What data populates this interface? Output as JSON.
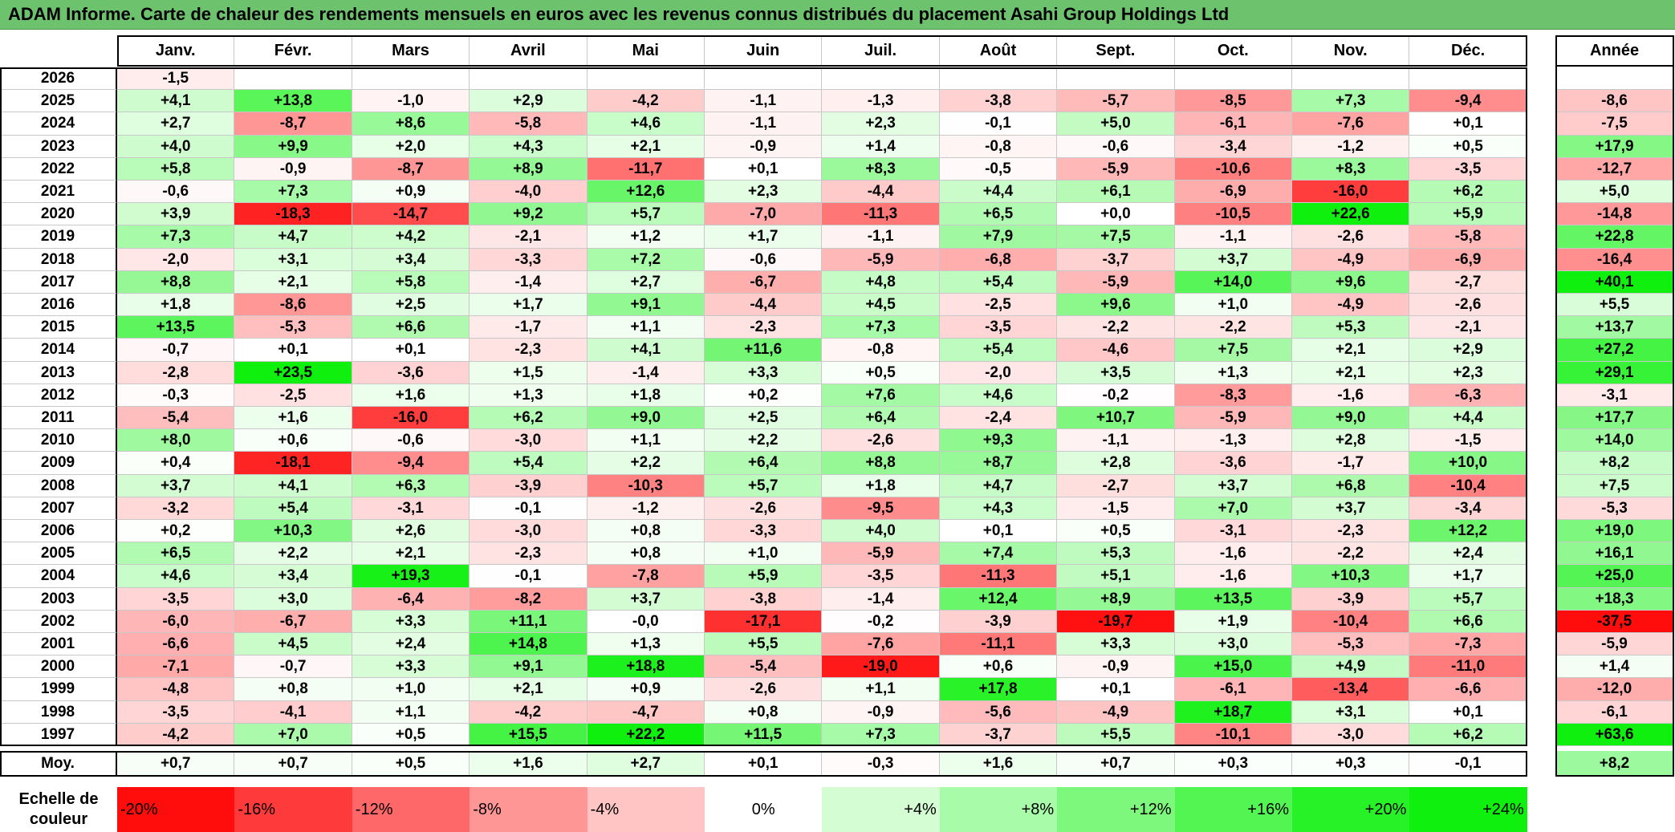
{
  "title": "ADAM Informe. Carte de chaleur des rendements mensuels en euros avec les revenus connus distribués du placement Asahi Group Holdings Ltd",
  "chart_data": {
    "type": "heatmap",
    "title": "ADAM Informe. Carte de chaleur des rendements mensuels en euros avec les revenus connus distribués du placement Asahi Group Holdings Ltd",
    "columns": [
      "Janv.",
      "Févr.",
      "Mars",
      "Avril",
      "Mai",
      "Juin",
      "Juil.",
      "Août",
      "Sept.",
      "Oct.",
      "Nov.",
      "Déc."
    ],
    "year_column_label": "Année",
    "rows": [
      {
        "year": "2026",
        "values": [
          "-1,5",
          "",
          "",
          "",
          "",
          "",
          "",
          "",
          "",
          "",
          "",
          ""
        ],
        "annual": ""
      },
      {
        "year": "2025",
        "values": [
          "+4,1",
          "+13,8",
          "-1,0",
          "+2,9",
          "-4,2",
          "-1,1",
          "-1,3",
          "-3,8",
          "-5,7",
          "-8,5",
          "+7,3",
          "-9,4"
        ],
        "annual": "-8,6"
      },
      {
        "year": "2024",
        "values": [
          "+2,7",
          "-8,7",
          "+8,6",
          "-5,8",
          "+4,6",
          "-1,1",
          "+2,3",
          "-0,1",
          "+5,0",
          "-6,1",
          "-7,6",
          "+0,1"
        ],
        "annual": "-7,5"
      },
      {
        "year": "2023",
        "values": [
          "+4,0",
          "+9,9",
          "+2,0",
          "+4,3",
          "+2,1",
          "-0,9",
          "+1,4",
          "-0,8",
          "-0,6",
          "-3,4",
          "-1,2",
          "+0,5"
        ],
        "annual": "+17,9"
      },
      {
        "year": "2022",
        "values": [
          "+5,8",
          "-0,9",
          "-8,7",
          "+8,9",
          "-11,7",
          "+0,1",
          "+8,3",
          "-0,5",
          "-5,9",
          "-10,6",
          "+8,3",
          "-3,5"
        ],
        "annual": "-12,7"
      },
      {
        "year": "2021",
        "values": [
          "-0,6",
          "+7,3",
          "+0,9",
          "-4,0",
          "+12,6",
          "+2,3",
          "-4,4",
          "+4,4",
          "+6,1",
          "-6,9",
          "-16,0",
          "+6,2"
        ],
        "annual": "+5,0"
      },
      {
        "year": "2020",
        "values": [
          "+3,9",
          "-18,3",
          "-14,7",
          "+9,2",
          "+5,7",
          "-7,0",
          "-11,3",
          "+6,5",
          "+0,0",
          "-10,5",
          "+22,6",
          "+5,9"
        ],
        "annual": "-14,8"
      },
      {
        "year": "2019",
        "values": [
          "+7,3",
          "+4,7",
          "+4,2",
          "-2,1",
          "+1,2",
          "+1,7",
          "-1,1",
          "+7,9",
          "+7,5",
          "-1,1",
          "-2,6",
          "-5,8"
        ],
        "annual": "+22,8"
      },
      {
        "year": "2018",
        "values": [
          "-2,0",
          "+3,1",
          "+3,4",
          "-3,3",
          "+7,2",
          "-0,6",
          "-5,9",
          "-6,8",
          "-3,7",
          "+3,7",
          "-4,9",
          "-6,9"
        ],
        "annual": "-16,4"
      },
      {
        "year": "2017",
        "values": [
          "+8,8",
          "+2,1",
          "+5,8",
          "-1,4",
          "+2,7",
          "-6,7",
          "+4,8",
          "+5,4",
          "-5,9",
          "+14,0",
          "+9,6",
          "-2,7"
        ],
        "annual": "+40,1"
      },
      {
        "year": "2016",
        "values": [
          "+1,8",
          "-8,6",
          "+2,5",
          "+1,7",
          "+9,1",
          "-4,4",
          "+4,5",
          "-2,5",
          "+9,6",
          "+1,0",
          "-4,9",
          "-2,6"
        ],
        "annual": "+5,5"
      },
      {
        "year": "2015",
        "values": [
          "+13,5",
          "-5,3",
          "+6,6",
          "-1,7",
          "+1,1",
          "-2,3",
          "+7,3",
          "-3,5",
          "-2,2",
          "-2,2",
          "+5,3",
          "-2,1"
        ],
        "annual": "+13,7"
      },
      {
        "year": "2014",
        "values": [
          "-0,7",
          "+0,1",
          "+0,1",
          "-2,3",
          "+4,1",
          "+11,6",
          "-0,8",
          "+5,4",
          "-4,6",
          "+7,5",
          "+2,1",
          "+2,9"
        ],
        "annual": "+27,2"
      },
      {
        "year": "2013",
        "values": [
          "-2,8",
          "+23,5",
          "-3,6",
          "+1,5",
          "-1,4",
          "+3,3",
          "+0,5",
          "-2,0",
          "+3,5",
          "+1,3",
          "+2,1",
          "+2,3"
        ],
        "annual": "+29,1"
      },
      {
        "year": "2012",
        "values": [
          "-0,3",
          "-2,5",
          "+1,6",
          "+1,3",
          "+1,8",
          "+0,2",
          "+7,6",
          "+4,6",
          "-0,2",
          "-8,3",
          "-1,6",
          "-6,3"
        ],
        "annual": "-3,1"
      },
      {
        "year": "2011",
        "values": [
          "-5,4",
          "+1,6",
          "-16,0",
          "+6,2",
          "+9,0",
          "+2,5",
          "+6,4",
          "-2,4",
          "+10,7",
          "-5,9",
          "+9,0",
          "+4,4"
        ],
        "annual": "+17,7"
      },
      {
        "year": "2010",
        "values": [
          "+8,0",
          "+0,6",
          "-0,6",
          "-3,0",
          "+1,1",
          "+2,2",
          "-2,6",
          "+9,3",
          "-1,1",
          "-1,3",
          "+2,8",
          "-1,5"
        ],
        "annual": "+14,0"
      },
      {
        "year": "2009",
        "values": [
          "+0,4",
          "-18,1",
          "-9,4",
          "+5,4",
          "+2,2",
          "+6,4",
          "+8,8",
          "+8,7",
          "+2,8",
          "-3,6",
          "-1,7",
          "+10,0"
        ],
        "annual": "+8,2"
      },
      {
        "year": "2008",
        "values": [
          "+3,7",
          "+4,1",
          "+6,3",
          "-3,9",
          "-10,3",
          "+5,7",
          "+1,8",
          "+4,7",
          "-2,7",
          "+3,7",
          "+6,8",
          "-10,4"
        ],
        "annual": "+7,5"
      },
      {
        "year": "2007",
        "values": [
          "-3,2",
          "+5,4",
          "-3,1",
          "-0,1",
          "-1,2",
          "-2,6",
          "-9,5",
          "+4,3",
          "-1,5",
          "+7,0",
          "+3,7",
          "-3,4"
        ],
        "annual": "-5,3"
      },
      {
        "year": "2006",
        "values": [
          "+0,2",
          "+10,3",
          "+2,6",
          "-3,0",
          "+0,8",
          "-3,3",
          "+4,0",
          "+0,1",
          "+0,5",
          "-3,1",
          "-2,3",
          "+12,2"
        ],
        "annual": "+19,0"
      },
      {
        "year": "2005",
        "values": [
          "+6,5",
          "+2,2",
          "+2,1",
          "-2,3",
          "+0,8",
          "+1,0",
          "-5,9",
          "+7,4",
          "+5,3",
          "-1,6",
          "-2,2",
          "+2,4"
        ],
        "annual": "+16,1"
      },
      {
        "year": "2004",
        "values": [
          "+4,6",
          "+3,4",
          "+19,3",
          "-0,1",
          "-7,8",
          "+5,9",
          "-3,5",
          "-11,3",
          "+5,1",
          "-1,6",
          "+10,3",
          "+1,7"
        ],
        "annual": "+25,0"
      },
      {
        "year": "2003",
        "values": [
          "-3,5",
          "+3,0",
          "-6,4",
          "-8,2",
          "+3,7",
          "-3,8",
          "-1,4",
          "+12,4",
          "+8,9",
          "+13,5",
          "-3,9",
          "+5,7"
        ],
        "annual": "+18,3"
      },
      {
        "year": "2002",
        "values": [
          "-6,0",
          "-6,7",
          "+3,3",
          "+11,1",
          "-0,0",
          "-17,1",
          "-0,2",
          "-3,9",
          "-19,7",
          "+1,9",
          "-10,4",
          "+6,6"
        ],
        "annual": "-37,5"
      },
      {
        "year": "2001",
        "values": [
          "-6,6",
          "+4,5",
          "+2,4",
          "+14,8",
          "+1,3",
          "+5,5",
          "-7,6",
          "-11,1",
          "+3,3",
          "+3,0",
          "-5,3",
          "-7,3"
        ],
        "annual": "-5,9"
      },
      {
        "year": "2000",
        "values": [
          "-7,1",
          "-0,7",
          "+3,3",
          "+9,1",
          "+18,8",
          "-5,4",
          "-19,0",
          "+0,6",
          "-0,9",
          "+15,0",
          "+4,9",
          "-11,0"
        ],
        "annual": "+1,4"
      },
      {
        "year": "1999",
        "values": [
          "-4,8",
          "+0,8",
          "+1,0",
          "+2,1",
          "+0,9",
          "-2,6",
          "+1,1",
          "+17,8",
          "+0,1",
          "-6,1",
          "-13,4",
          "-6,6"
        ],
        "annual": "-12,0"
      },
      {
        "year": "1998",
        "values": [
          "-3,5",
          "-4,1",
          "+1,1",
          "-4,2",
          "-4,7",
          "+0,8",
          "-0,9",
          "-5,6",
          "-4,9",
          "+18,7",
          "+3,1",
          "+0,1"
        ],
        "annual": "-6,1"
      },
      {
        "year": "1997",
        "values": [
          "-4,2",
          "+7,0",
          "+0,5",
          "+15,5",
          "+22,2",
          "+11,5",
          "+7,3",
          "-3,7",
          "+5,5",
          "-10,1",
          "-3,0",
          "+6,2"
        ],
        "annual": "+63,6"
      }
    ],
    "average": {
      "label": "Moy.",
      "values": [
        "+0,7",
        "+0,7",
        "+0,5",
        "+1,6",
        "+2,7",
        "+0,1",
        "-0,3",
        "+1,6",
        "+0,7",
        "+0,3",
        "+0,3",
        "-0,1"
      ],
      "annual": "+8,2"
    },
    "color_scale": {
      "label": "Echelle de\ncouleur",
      "stops": [
        {
          "label": "-20%",
          "color": "#ff0d0d"
        },
        {
          "label": "-16%",
          "color": "#ff3a3a"
        },
        {
          "label": "-12%",
          "color": "#ff6868"
        },
        {
          "label": "-8%",
          "color": "#ff9696"
        },
        {
          "label": "-4%",
          "color": "#ffc4c4"
        },
        {
          "label": "0%",
          "color": "#ffffff"
        },
        {
          "label": "+4%",
          "color": "#d4fdd4"
        },
        {
          "label": "+8%",
          "color": "#a8fba8"
        },
        {
          "label": "+12%",
          "color": "#7df87d"
        },
        {
          "label": "+16%",
          "color": "#52f552"
        },
        {
          "label": "+20%",
          "color": "#27f227"
        },
        {
          "label": "+24%",
          "color": "#0ff00f"
        }
      ]
    }
  }
}
